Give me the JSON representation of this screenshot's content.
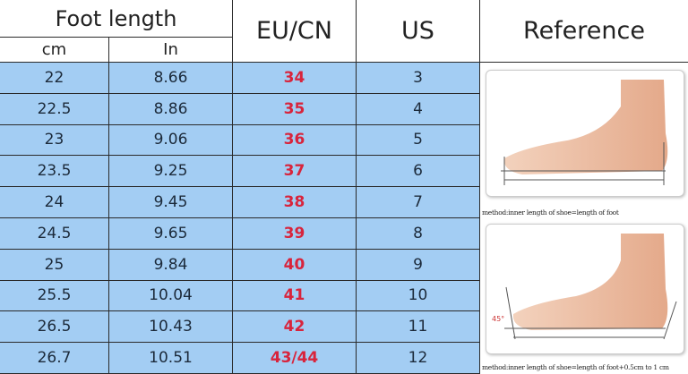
{
  "header": {
    "foot_length": "Foot length",
    "cm": "cm",
    "in": "In",
    "eu_cn": "EU/CN",
    "us": "US",
    "reference": "Reference"
  },
  "rows": [
    {
      "cm": "22",
      "in": "8.66",
      "eu": "34",
      "us": "3"
    },
    {
      "cm": "22.5",
      "in": "8.86",
      "eu": "35",
      "us": "4"
    },
    {
      "cm": "23",
      "in": "9.06",
      "eu": "36",
      "us": "5"
    },
    {
      "cm": "23.5",
      "in": "9.25",
      "eu": "37",
      "us": "6"
    },
    {
      "cm": "24",
      "in": "9.45",
      "eu": "38",
      "us": "7"
    },
    {
      "cm": "24.5",
      "in": "9.65",
      "eu": "39",
      "us": "8"
    },
    {
      "cm": "25",
      "in": "9.84",
      "eu": "40",
      "us": "9"
    },
    {
      "cm": "25.5",
      "in": "10.04",
      "eu": "41",
      "us": "10"
    },
    {
      "cm": "26.5",
      "in": "10.43",
      "eu": "42",
      "us": "11"
    },
    {
      "cm": "26.7",
      "in": "10.51",
      "eu": "43/44",
      "us": "12"
    }
  ],
  "reference": {
    "caption1": "method:inner length of shoe=length of foot",
    "caption2": "method:inner length of shoe=length of foot+0.5cm to 1 cm",
    "angle_label": "45°"
  },
  "colors": {
    "row_bg": "#a3cdf3",
    "eu_text": "#d8243c"
  }
}
